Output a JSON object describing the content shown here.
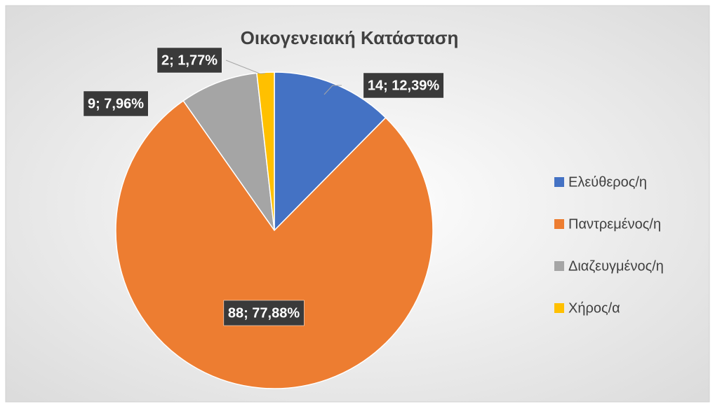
{
  "chart_data": {
    "type": "pie",
    "title": "Οικογενειακή Κατάσταση",
    "categories": [
      "Ελεύθερος/η",
      "Παντρεμένος/η",
      "Διαζευγμένος/η",
      "Χήρος/α"
    ],
    "values": [
      14,
      88,
      9,
      2
    ],
    "value_labels": [
      "14; 12,39%",
      "88; 77,88%",
      "9; 7,96%",
      "2; 1,77%"
    ],
    "colors": [
      "#4472c4",
      "#ed7d31",
      "#a5a5a5",
      "#ffc000"
    ],
    "legend": "right"
  }
}
